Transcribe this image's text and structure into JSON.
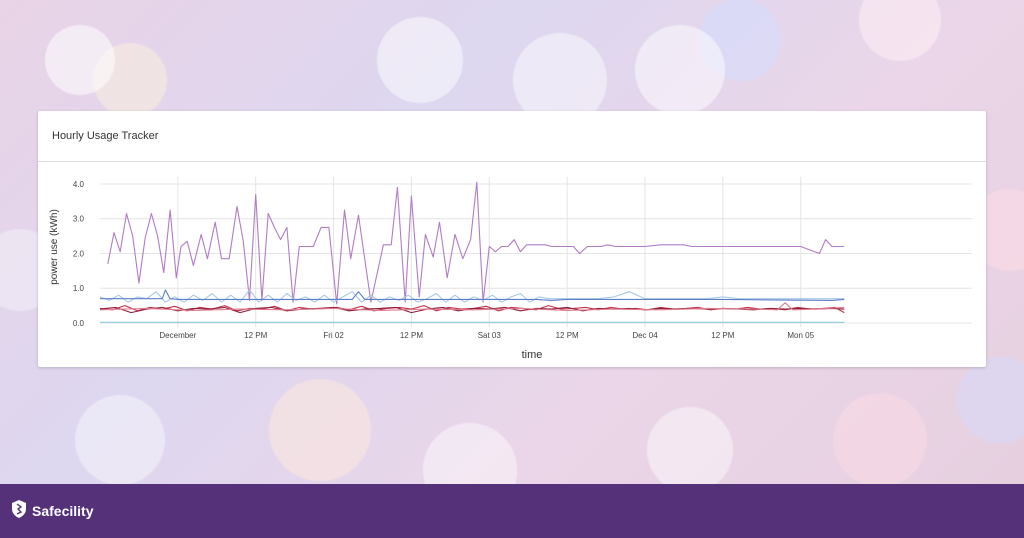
{
  "card": {
    "title": "Hourly Usage Tracker"
  },
  "brand": {
    "name": "Safecility",
    "icon": "shield-logo-icon"
  },
  "colors": {
    "purple": "#b07cc4",
    "lightblue": "#a8c8e8",
    "blue": "#5b7fc7",
    "teal": "#8ecadb",
    "red": "#c2324a",
    "darkred": "#8e1f3a",
    "pink": "#e07a8e",
    "footer": "#55317a"
  },
  "chart_data": {
    "type": "line",
    "xlabel": "time",
    "ylabel": "power use (kWh)",
    "ylim": [
      0,
      4.2
    ],
    "yticks": [
      {
        "value": 0,
        "label": "0.0"
      },
      {
        "value": 1,
        "label": "1.0"
      },
      {
        "value": 2,
        "label": "2.0"
      },
      {
        "value": 3,
        "label": "3.0"
      },
      {
        "value": 4,
        "label": "4.0"
      }
    ],
    "xlim": [
      0,
      5.6
    ],
    "xticks": [
      {
        "value": 0.5,
        "label": "December"
      },
      {
        "value": 1.0,
        "label": "12 PM"
      },
      {
        "value": 1.5,
        "label": "Fri 02"
      },
      {
        "value": 2.0,
        "label": "12 PM"
      },
      {
        "value": 2.5,
        "label": "Sat 03"
      },
      {
        "value": 3.0,
        "label": "12 PM"
      },
      {
        "value": 3.5,
        "label": "Dec 04"
      },
      {
        "value": 4.0,
        "label": "12 PM"
      },
      {
        "value": 4.5,
        "label": "Mon 05"
      }
    ],
    "grid": true,
    "series": [
      {
        "color": "#b07cc4",
        "x": [
          0.05,
          0.09,
          0.13,
          0.17,
          0.21,
          0.25,
          0.29,
          0.33,
          0.37,
          0.41,
          0.45,
          0.49,
          0.52,
          0.56,
          0.6,
          0.65,
          0.69,
          0.74,
          0.78,
          0.83,
          0.88,
          0.92,
          0.96,
          1.0,
          1.04,
          1.08,
          1.12,
          1.16,
          1.2,
          1.24,
          1.28,
          1.33,
          1.37,
          1.42,
          1.47,
          1.52,
          1.57,
          1.61,
          1.66,
          1.74,
          1.82,
          1.87,
          1.91,
          1.96,
          2.0,
          2.05,
          2.09,
          2.14,
          2.18,
          2.23,
          2.28,
          2.33,
          2.38,
          2.42,
          2.46,
          2.5,
          2.54,
          2.58,
          2.62,
          2.66,
          2.7,
          2.74,
          2.78,
          2.82,
          2.86,
          2.9,
          2.95,
          2.99,
          3.04,
          3.08,
          3.13,
          3.17,
          3.22,
          3.26,
          3.31,
          3.4,
          3.5,
          3.6,
          3.7,
          3.75,
          3.8,
          3.9,
          4.05,
          4.2,
          4.35,
          4.5,
          4.62,
          4.66,
          4.7,
          4.74,
          4.78
        ],
        "y": [
          1.7,
          2.6,
          2.05,
          3.15,
          2.5,
          1.15,
          2.45,
          3.15,
          2.5,
          1.45,
          3.25,
          1.3,
          2.2,
          2.35,
          1.65,
          2.55,
          1.85,
          2.9,
          1.85,
          1.85,
          3.35,
          2.35,
          0.65,
          3.7,
          0.65,
          3.15,
          2.75,
          2.4,
          2.75,
          0.6,
          2.2,
          2.2,
          2.2,
          2.75,
          2.75,
          0.55,
          3.25,
          1.85,
          3.1,
          0.6,
          2.25,
          2.25,
          3.9,
          0.6,
          3.65,
          0.75,
          2.55,
          1.9,
          2.9,
          1.3,
          2.55,
          1.85,
          2.4,
          4.05,
          0.6,
          2.2,
          2.05,
          2.2,
          2.2,
          2.4,
          2.05,
          2.25,
          2.25,
          2.25,
          2.25,
          2.2,
          2.2,
          2.2,
          2.2,
          2.0,
          2.2,
          2.2,
          2.2,
          2.25,
          2.2,
          2.2,
          2.2,
          2.25,
          2.25,
          2.25,
          2.2,
          2.2,
          2.2,
          2.2,
          2.2,
          2.2,
          2.0,
          2.4,
          2.2,
          2.2,
          2.2
        ]
      },
      {
        "color": "#a8c8e8",
        "x": [
          0.0,
          0.06,
          0.12,
          0.18,
          0.24,
          0.3,
          0.36,
          0.42,
          0.48,
          0.54,
          0.6,
          0.66,
          0.72,
          0.78,
          0.84,
          0.9,
          0.96,
          1.02,
          1.08,
          1.14,
          1.2,
          1.26,
          1.32,
          1.38,
          1.44,
          1.5,
          1.56,
          1.62,
          1.68,
          1.74,
          1.8,
          1.86,
          1.92,
          1.98,
          2.04,
          2.1,
          2.16,
          2.22,
          2.28,
          2.34,
          2.4,
          2.46,
          2.52,
          2.58,
          2.64,
          2.7,
          2.76,
          2.82,
          2.88,
          2.94,
          3.0,
          3.1,
          3.2,
          3.3,
          3.4,
          3.5,
          3.6,
          3.7,
          3.8,
          3.9,
          4.0,
          4.1,
          4.2,
          4.3,
          4.4,
          4.5,
          4.6,
          4.7,
          4.78
        ],
        "y": [
          0.75,
          0.65,
          0.8,
          0.6,
          0.75,
          0.7,
          0.9,
          0.6,
          0.75,
          0.6,
          0.8,
          0.65,
          0.85,
          0.6,
          0.8,
          0.6,
          0.95,
          0.6,
          0.8,
          0.6,
          0.85,
          0.65,
          0.75,
          0.6,
          0.8,
          0.6,
          0.75,
          0.9,
          0.6,
          0.8,
          0.6,
          0.75,
          0.65,
          0.8,
          0.6,
          0.7,
          0.85,
          0.6,
          0.8,
          0.6,
          0.75,
          0.65,
          0.8,
          0.6,
          0.75,
          0.85,
          0.6,
          0.75,
          0.7,
          0.7,
          0.7,
          0.7,
          0.7,
          0.75,
          0.9,
          0.7,
          0.7,
          0.7,
          0.7,
          0.7,
          0.75,
          0.7,
          0.7,
          0.7,
          0.7,
          0.7,
          0.7,
          0.7,
          0.7
        ]
      },
      {
        "color": "#5b7fc7",
        "x": [
          0.0,
          0.2,
          0.4,
          0.42,
          0.45,
          0.5,
          0.8,
          1.0,
          1.2,
          1.5,
          1.62,
          1.66,
          1.7,
          2.0,
          2.3,
          2.6,
          2.8,
          2.9,
          3.0,
          3.2,
          3.6,
          4.0,
          4.4,
          4.7,
          4.78
        ],
        "y": [
          0.7,
          0.7,
          0.7,
          0.95,
          0.7,
          0.68,
          0.68,
          0.68,
          0.68,
          0.68,
          0.68,
          0.9,
          0.68,
          0.68,
          0.68,
          0.68,
          0.68,
          0.65,
          0.68,
          0.68,
          0.68,
          0.68,
          0.66,
          0.65,
          0.68
        ]
      },
      {
        "color": "#8ecadb",
        "x": [
          0.0,
          1.0,
          2.0,
          3.0,
          4.0,
          4.78
        ],
        "y": [
          0.02,
          0.02,
          0.02,
          0.02,
          0.02,
          0.02
        ]
      },
      {
        "color": "#c2324a",
        "x": [
          0.0,
          0.08,
          0.16,
          0.24,
          0.32,
          0.4,
          0.48,
          0.56,
          0.64,
          0.72,
          0.8,
          0.88,
          0.96,
          1.04,
          1.12,
          1.2,
          1.28,
          1.36,
          1.44,
          1.52,
          1.6,
          1.68,
          1.76,
          1.84,
          1.92,
          2.0,
          2.08,
          2.16,
          2.24,
          2.32,
          2.4,
          2.48,
          2.56,
          2.64,
          2.72,
          2.8,
          2.88,
          2.96,
          3.04,
          3.12,
          3.2,
          3.28,
          3.36,
          3.44,
          3.52,
          3.6,
          3.68,
          3.76,
          3.84,
          3.92,
          4.0,
          4.08,
          4.16,
          4.24,
          4.32,
          4.4,
          4.48,
          4.56,
          4.64,
          4.72,
          4.78
        ],
        "y": [
          0.42,
          0.38,
          0.5,
          0.35,
          0.45,
          0.4,
          0.48,
          0.35,
          0.45,
          0.4,
          0.5,
          0.35,
          0.42,
          0.4,
          0.48,
          0.35,
          0.45,
          0.4,
          0.42,
          0.45,
          0.38,
          0.48,
          0.35,
          0.42,
          0.45,
          0.4,
          0.5,
          0.35,
          0.45,
          0.4,
          0.42,
          0.48,
          0.35,
          0.45,
          0.42,
          0.38,
          0.5,
          0.4,
          0.42,
          0.45,
          0.38,
          0.45,
          0.4,
          0.42,
          0.38,
          0.45,
          0.4,
          0.42,
          0.45,
          0.38,
          0.42,
          0.4,
          0.45,
          0.4,
          0.42,
          0.38,
          0.45,
          0.4,
          0.42,
          0.45,
          0.3
        ]
      },
      {
        "color": "#8e1f3a",
        "x": [
          0.0,
          0.1,
          0.2,
          0.3,
          0.4,
          0.5,
          0.6,
          0.7,
          0.8,
          0.9,
          1.0,
          1.1,
          1.2,
          1.3,
          1.4,
          1.5,
          1.6,
          1.7,
          1.8,
          1.9,
          2.0,
          2.1,
          2.2,
          2.3,
          2.4,
          2.5,
          2.6,
          2.7,
          2.8,
          2.9,
          3.0,
          3.1,
          3.2,
          3.3,
          3.4,
          3.5,
          3.6,
          3.7,
          3.8,
          3.9,
          4.0,
          4.1,
          4.2,
          4.3,
          4.4,
          4.5,
          4.6,
          4.7,
          4.78
        ],
        "y": [
          0.4,
          0.45,
          0.3,
          0.4,
          0.45,
          0.35,
          0.42,
          0.4,
          0.45,
          0.3,
          0.42,
          0.45,
          0.35,
          0.4,
          0.42,
          0.45,
          0.35,
          0.4,
          0.42,
          0.45,
          0.3,
          0.4,
          0.45,
          0.35,
          0.42,
          0.4,
          0.45,
          0.35,
          0.42,
          0.4,
          0.45,
          0.35,
          0.42,
          0.4,
          0.42,
          0.38,
          0.42,
          0.4,
          0.42,
          0.4,
          0.42,
          0.4,
          0.38,
          0.42,
          0.4,
          0.42,
          0.4,
          0.42,
          0.4
        ]
      },
      {
        "color": "#e07a8e",
        "x": [
          0.0,
          0.3,
          0.6,
          0.9,
          1.2,
          1.5,
          1.8,
          2.1,
          2.4,
          2.7,
          3.0,
          3.3,
          3.6,
          3.9,
          4.2,
          4.35,
          4.4,
          4.45,
          4.6,
          4.78
        ],
        "y": [
          0.38,
          0.42,
          0.36,
          0.4,
          0.38,
          0.42,
          0.36,
          0.4,
          0.38,
          0.42,
          0.36,
          0.4,
          0.38,
          0.42,
          0.4,
          0.38,
          0.58,
          0.38,
          0.4,
          0.45
        ]
      }
    ]
  }
}
